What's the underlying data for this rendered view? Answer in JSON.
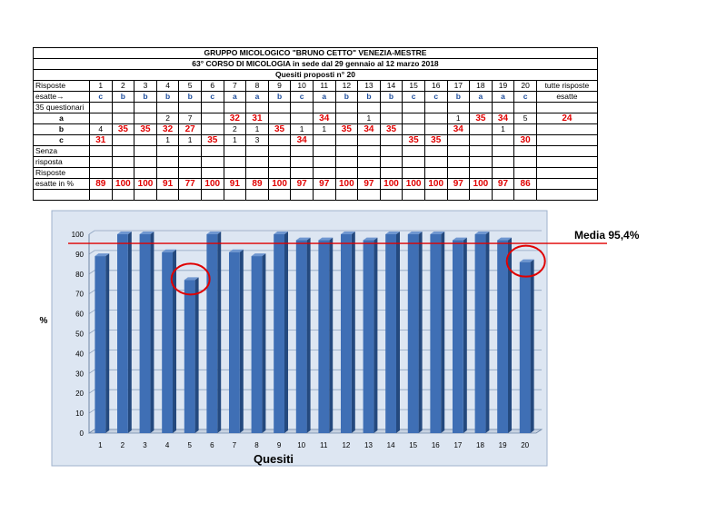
{
  "table": {
    "title1": "GRUPPO MICOLOGICO \"BRUNO CETTO\" VENEZIA-MESTRE",
    "title2": "63° CORSO DI MICOLOGIA in sede dal 29 gennaio al 12 marzo 2018",
    "title3": "Quesiti proposti n° 20",
    "row_risposte_label": "Risposte",
    "row_esatte_label": "esatte→",
    "row_questionari_label": "35 questionari",
    "row_a_label": "a",
    "row_b_label": "b",
    "row_c_label": "c",
    "row_senza1": "Senza",
    "row_senza2": "risposta",
    "row_pct1": "Risposte",
    "row_pct2": "esatte in %",
    "tutte1": "tutte risposte",
    "tutte2": "esatte",
    "tutte_value": "24",
    "questions": [
      "1",
      "2",
      "3",
      "4",
      "5",
      "6",
      "7",
      "8",
      "9",
      "10",
      "11",
      "12",
      "13",
      "14",
      "15",
      "16",
      "17",
      "18",
      "19",
      "20"
    ],
    "correct": [
      "c",
      "b",
      "b",
      "b",
      "b",
      "c",
      "a",
      "a",
      "b",
      "c",
      "a",
      "b",
      "b",
      "b",
      "c",
      "c",
      "b",
      "a",
      "a",
      "c"
    ],
    "counts_a": [
      "",
      "",
      "",
      "2",
      "7",
      "",
      "32",
      "31",
      "",
      "",
      "34",
      "",
      "1",
      "",
      "",
      "",
      "1",
      "35",
      "34",
      "5"
    ],
    "counts_b": [
      "4",
      "35",
      "35",
      "32",
      "27",
      "",
      "2",
      "1",
      "35",
      "1",
      "1",
      "35",
      "34",
      "35",
      "",
      "",
      "34",
      "",
      "1",
      ""
    ],
    "counts_c": [
      "31",
      "",
      "",
      "1",
      "1",
      "35",
      "1",
      "3",
      "",
      "34",
      "",
      "",
      "",
      "",
      "35",
      "35",
      "",
      "",
      "",
      "30"
    ],
    "percent": [
      "89",
      "100",
      "100",
      "91",
      "77",
      "100",
      "91",
      "89",
      "100",
      "97",
      "97",
      "100",
      "97",
      "100",
      "100",
      "100",
      "97",
      "100",
      "97",
      "86"
    ]
  },
  "chart_data": {
    "type": "bar",
    "categories": [
      "1",
      "2",
      "3",
      "4",
      "5",
      "6",
      "7",
      "8",
      "9",
      "10",
      "11",
      "12",
      "13",
      "14",
      "15",
      "16",
      "17",
      "18",
      "19",
      "20"
    ],
    "values": [
      89,
      100,
      100,
      91,
      77,
      100,
      91,
      89,
      100,
      97,
      97,
      100,
      97,
      100,
      100,
      100,
      97,
      100,
      97,
      86
    ],
    "xlabel": "Quesiti",
    "ylabel": "%",
    "ylim": [
      0,
      100
    ],
    "yticks": [
      0,
      10,
      20,
      30,
      40,
      50,
      60,
      70,
      80,
      90,
      100
    ],
    "mean_value": 95.4,
    "mean_label": "Media 95,4%",
    "highlighted_categories": [
      "5",
      "20"
    ],
    "colors": {
      "bar": "#3f6fb5",
      "mean_line": "#e00000",
      "background": "#dde6f2"
    }
  }
}
